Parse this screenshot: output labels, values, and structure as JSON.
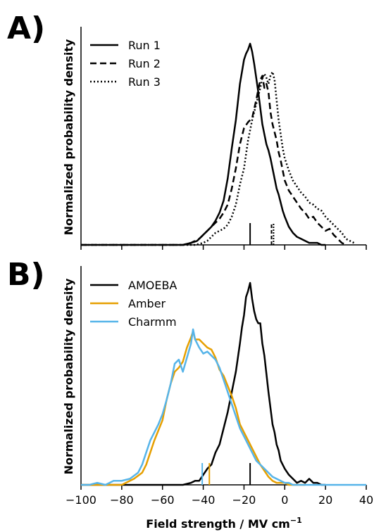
{
  "chart_data": [
    {
      "panel": "A)",
      "type": "line",
      "ylabel": "Normalized probability density",
      "xlabel": "",
      "xlim": [
        -100,
        40
      ],
      "ylim": [
        0,
        1
      ],
      "y_ticks_shown": false,
      "legend": "top-left",
      "series": [
        {
          "name": "Run 1",
          "style": "solid",
          "color": "#000000",
          "x": [
            -100,
            -95,
            -90,
            -85,
            -80,
            -75,
            -70,
            -65,
            -60,
            -55,
            -50,
            -46,
            -43,
            -40,
            -38,
            -36,
            -34,
            -32,
            -30,
            -28,
            -26,
            -24,
            -22,
            -21,
            -20,
            -19,
            -18,
            -17,
            -16,
            -15,
            -14,
            -13,
            -12,
            -11,
            -10,
            -9,
            -8,
            -7,
            -6,
            -5,
            -4,
            -3,
            -2,
            -1,
            0,
            2,
            4,
            6,
            8,
            10,
            12,
            14,
            16,
            18,
            20
          ],
          "values": [
            0,
            0,
            0,
            0,
            0,
            0,
            0,
            0,
            0,
            0,
            0,
            0.01,
            0.02,
            0.05,
            0.07,
            0.09,
            0.12,
            0.16,
            0.22,
            0.33,
            0.48,
            0.62,
            0.8,
            0.86,
            0.92,
            0.95,
            0.97,
            1.0,
            0.96,
            0.9,
            0.83,
            0.76,
            0.68,
            0.6,
            0.55,
            0.5,
            0.47,
            0.43,
            0.38,
            0.33,
            0.28,
            0.25,
            0.21,
            0.17,
            0.14,
            0.09,
            0.06,
            0.04,
            0.03,
            0.02,
            0.01,
            0.01,
            0.01,
            0,
            0
          ]
        },
        {
          "name": "Run 2",
          "style": "dashed",
          "color": "#000000",
          "x": [
            -100,
            -90,
            -80,
            -70,
            -60,
            -50,
            -46,
            -42,
            -40,
            -38,
            -36,
            -34,
            -32,
            -30,
            -28,
            -26,
            -24,
            -22,
            -20,
            -18,
            -16,
            -14,
            -12,
            -11,
            -10,
            -9,
            -8,
            -7,
            -6,
            -5,
            -4,
            -3,
            -2,
            -1,
            0,
            2,
            4,
            6,
            8,
            10,
            12,
            14,
            16,
            18,
            20,
            22,
            24,
            26,
            28,
            30
          ],
          "values": [
            0,
            0,
            0,
            0,
            0,
            0,
            0.01,
            0.03,
            0.05,
            0.07,
            0.09,
            0.11,
            0.13,
            0.16,
            0.2,
            0.28,
            0.38,
            0.5,
            0.58,
            0.61,
            0.63,
            0.72,
            0.82,
            0.84,
            0.78,
            0.8,
            0.76,
            0.66,
            0.6,
            0.56,
            0.52,
            0.46,
            0.42,
            0.37,
            0.32,
            0.27,
            0.24,
            0.21,
            0.18,
            0.16,
            0.13,
            0.14,
            0.11,
            0.09,
            0.07,
            0.08,
            0.05,
            0.03,
            0.01,
            0
          ]
        },
        {
          "name": "Run 3",
          "style": "dotted",
          "color": "#000000",
          "x": [
            -100,
            -90,
            -80,
            -70,
            -60,
            -50,
            -44,
            -40,
            -38,
            -36,
            -34,
            -32,
            -30,
            -28,
            -26,
            -24,
            -22,
            -20,
            -18,
            -16,
            -14,
            -12,
            -11,
            -10,
            -9,
            -8,
            -7,
            -6,
            -5,
            -4,
            -3,
            -2,
            -1,
            0,
            2,
            4,
            6,
            8,
            10,
            12,
            14,
            16,
            18,
            20,
            22,
            24,
            26,
            28,
            30,
            32,
            34
          ],
          "values": [
            0,
            0,
            0,
            0,
            0,
            0,
            0,
            0.01,
            0.02,
            0.04,
            0.06,
            0.07,
            0.08,
            0.1,
            0.14,
            0.2,
            0.3,
            0.38,
            0.52,
            0.62,
            0.7,
            0.78,
            0.83,
            0.85,
            0.83,
            0.8,
            0.84,
            0.86,
            0.82,
            0.72,
            0.62,
            0.55,
            0.48,
            0.43,
            0.37,
            0.32,
            0.29,
            0.26,
            0.24,
            0.21,
            0.2,
            0.18,
            0.17,
            0.14,
            0.12,
            0.1,
            0.08,
            0.06,
            0.03,
            0.02,
            0.01
          ]
        }
      ],
      "mean_markers": [
        {
          "series": "Run 1",
          "x": -17,
          "style": "solid"
        },
        {
          "series": "Run 2",
          "x": -6.5,
          "style": "dashed"
        },
        {
          "series": "Run 3",
          "x": -5.5,
          "style": "dotted"
        }
      ]
    },
    {
      "panel": "B)",
      "type": "line",
      "ylabel": "Normalized probability density",
      "xlabel": "Field strength / MV cm",
      "xlabel_superscript": "−1",
      "xlim": [
        -100,
        40
      ],
      "ylim": [
        0,
        1
      ],
      "x_ticks": [
        -100,
        -80,
        -60,
        -40,
        -20,
        0,
        20,
        40
      ],
      "x_tick_labels": [
        "−100",
        "−80",
        "−60",
        "−40",
        "−20",
        "0",
        "20",
        "40"
      ],
      "y_ticks_shown": false,
      "legend": "top-left",
      "series": [
        {
          "name": "AMOEBA",
          "color": "#000000",
          "x": [
            -100,
            -80,
            -60,
            -50,
            -46,
            -44,
            -42,
            -40,
            -38,
            -36,
            -34,
            -32,
            -30,
            -28,
            -26,
            -24,
            -22,
            -21,
            -20,
            -19,
            -18,
            -17,
            -16,
            -15,
            -14,
            -13,
            -12,
            -11,
            -10,
            -9,
            -8,
            -7,
            -6,
            -5,
            -4,
            -3,
            -2,
            -1,
            0,
            2,
            4,
            6,
            8,
            10,
            12,
            14,
            16,
            18,
            20
          ],
          "values": [
            0,
            0,
            0,
            0,
            0.01,
            0.02,
            0.02,
            0.05,
            0.08,
            0.1,
            0.16,
            0.2,
            0.28,
            0.36,
            0.46,
            0.56,
            0.7,
            0.78,
            0.84,
            0.93,
            0.96,
            1.0,
            0.92,
            0.86,
            0.82,
            0.8,
            0.8,
            0.7,
            0.64,
            0.55,
            0.46,
            0.38,
            0.3,
            0.26,
            0.2,
            0.17,
            0.12,
            0.1,
            0.08,
            0.05,
            0.03,
            0.01,
            0.02,
            0.01,
            0.03,
            0.01,
            0.01,
            0,
            0
          ]
        },
        {
          "name": "Amber",
          "color": "#E69F00",
          "x": [
            -100,
            -90,
            -80,
            -78,
            -74,
            -70,
            -68,
            -66,
            -64,
            -62,
            -60,
            -58,
            -56,
            -54,
            -52,
            -50,
            -48,
            -46,
            -45,
            -44,
            -42,
            -40,
            -38,
            -36,
            -34,
            -32,
            -30,
            -28,
            -26,
            -24,
            -22,
            -20,
            -18,
            -16,
            -14,
            -12,
            -10,
            -8,
            -6,
            -4,
            -2,
            0,
            2,
            4,
            6,
            8,
            10
          ],
          "values": [
            0,
            0,
            0,
            0.01,
            0.03,
            0.06,
            0.1,
            0.16,
            0.22,
            0.27,
            0.32,
            0.42,
            0.5,
            0.56,
            0.58,
            0.61,
            0.68,
            0.73,
            0.76,
            0.72,
            0.72,
            0.7,
            0.68,
            0.67,
            0.63,
            0.57,
            0.54,
            0.49,
            0.44,
            0.38,
            0.3,
            0.26,
            0.22,
            0.18,
            0.14,
            0.1,
            0.07,
            0.04,
            0.02,
            0.01,
            0.01,
            0.01,
            0,
            0,
            0,
            0,
            0
          ]
        },
        {
          "name": "Charmm",
          "color": "#56B4E9",
          "x": [
            -100,
            -96,
            -92,
            -88,
            -84,
            -80,
            -76,
            -72,
            -70,
            -68,
            -66,
            -64,
            -62,
            -60,
            -58,
            -56,
            -54,
            -52,
            -50,
            -48,
            -46,
            -45,
            -44,
            -42,
            -40,
            -38,
            -36,
            -34,
            -32,
            -30,
            -28,
            -26,
            -24,
            -22,
            -20,
            -18,
            -16,
            -14,
            -12,
            -10,
            -8,
            -6,
            -4,
            -2,
            0,
            2,
            4,
            6,
            8,
            10,
            20,
            40
          ],
          "values": [
            0,
            0,
            0.01,
            0,
            0.02,
            0.02,
            0.03,
            0.06,
            0.1,
            0.16,
            0.22,
            0.26,
            0.3,
            0.35,
            0.42,
            0.5,
            0.6,
            0.62,
            0.56,
            0.63,
            0.7,
            0.77,
            0.72,
            0.68,
            0.65,
            0.66,
            0.64,
            0.62,
            0.58,
            0.52,
            0.46,
            0.4,
            0.34,
            0.28,
            0.24,
            0.2,
            0.16,
            0.12,
            0.1,
            0.08,
            0.06,
            0.04,
            0.03,
            0.02,
            0.01,
            0.01,
            0,
            0,
            0,
            0,
            0,
            0
          ]
        }
      ],
      "mean_markers": [
        {
          "series": "AMOEBA",
          "x": -17,
          "color": "#000000"
        },
        {
          "series": "Amber",
          "x": -37,
          "color": "#E69F00"
        },
        {
          "series": "Charmm",
          "x": -40.5,
          "color": "#56B4E9"
        }
      ]
    }
  ]
}
